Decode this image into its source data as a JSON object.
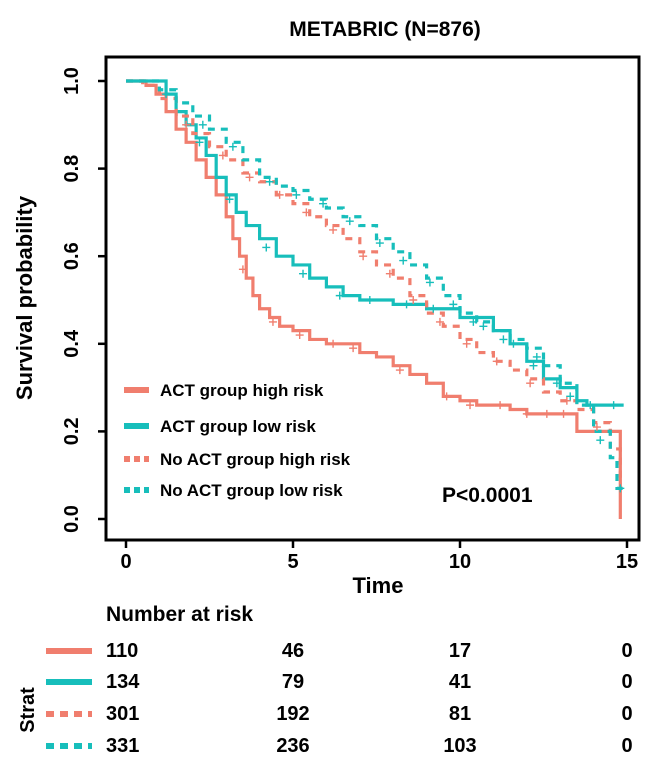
{
  "chart_data": {
    "type": "line",
    "subtype": "kaplan-meier",
    "title": "METABRIC (N=876)",
    "xlabel": "Time",
    "ylabel": "Survival probability",
    "xlim": [
      0,
      15
    ],
    "ylim": [
      0,
      1
    ],
    "x_ticks": [
      "0",
      "5",
      "10",
      "15"
    ],
    "y_ticks": [
      "0.0",
      "0.2",
      "0.4",
      "0.6",
      "0.8",
      "1.0"
    ],
    "grid": false,
    "legend_position": "bottom-left",
    "p_value": "P<0.0001",
    "colors": {
      "high": "#F07E6E",
      "low": "#17BEBB"
    },
    "series": [
      {
        "name": "ACT group high risk",
        "color": "#F07E6E",
        "dash": "solid",
        "points": [
          [
            0,
            1.0
          ],
          [
            0.6,
            0.99
          ],
          [
            0.9,
            0.97
          ],
          [
            1.2,
            0.93
          ],
          [
            1.5,
            0.89
          ],
          [
            1.8,
            0.86
          ],
          [
            2.1,
            0.82
          ],
          [
            2.4,
            0.78
          ],
          [
            2.7,
            0.74
          ],
          [
            3.0,
            0.69
          ],
          [
            3.2,
            0.64
          ],
          [
            3.4,
            0.6
          ],
          [
            3.6,
            0.55
          ],
          [
            3.8,
            0.51
          ],
          [
            4.0,
            0.48
          ],
          [
            4.3,
            0.46
          ],
          [
            4.6,
            0.44
          ],
          [
            5.0,
            0.43
          ],
          [
            5.5,
            0.41
          ],
          [
            6.0,
            0.4
          ],
          [
            6.5,
            0.4
          ],
          [
            7.0,
            0.38
          ],
          [
            7.5,
            0.37
          ],
          [
            8.0,
            0.35
          ],
          [
            8.5,
            0.33
          ],
          [
            9.0,
            0.31
          ],
          [
            9.5,
            0.28
          ],
          [
            10.0,
            0.27
          ],
          [
            10.5,
            0.26
          ],
          [
            11.0,
            0.26
          ],
          [
            11.5,
            0.25
          ],
          [
            12.0,
            0.24
          ],
          [
            13.5,
            0.24
          ],
          [
            13.5,
            0.2
          ],
          [
            14.8,
            0.2
          ],
          [
            14.8,
            0.0
          ]
        ],
        "censor": [
          [
            3.5,
            0.57
          ],
          [
            4.4,
            0.45
          ],
          [
            5.2,
            0.42
          ],
          [
            6.2,
            0.4
          ],
          [
            6.8,
            0.39
          ],
          [
            8.2,
            0.34
          ],
          [
            9.6,
            0.28
          ],
          [
            10.3,
            0.26
          ],
          [
            11.2,
            0.26
          ],
          [
            12.0,
            0.24
          ],
          [
            12.6,
            0.24
          ],
          [
            13.1,
            0.24
          ]
        ]
      },
      {
        "name": "ACT group low risk",
        "color": "#17BEBB",
        "dash": "solid",
        "points": [
          [
            0,
            1.0
          ],
          [
            0.9,
            1.0
          ],
          [
            1.2,
            0.97
          ],
          [
            1.5,
            0.93
          ],
          [
            1.8,
            0.9
          ],
          [
            2.1,
            0.87
          ],
          [
            2.4,
            0.83
          ],
          [
            2.7,
            0.78
          ],
          [
            3.0,
            0.74
          ],
          [
            3.3,
            0.7
          ],
          [
            3.6,
            0.67
          ],
          [
            4.0,
            0.64
          ],
          [
            4.5,
            0.6
          ],
          [
            5.0,
            0.58
          ],
          [
            5.5,
            0.55
          ],
          [
            6.0,
            0.53
          ],
          [
            6.5,
            0.51
          ],
          [
            7.0,
            0.5
          ],
          [
            8.0,
            0.49
          ],
          [
            9.0,
            0.48
          ],
          [
            10.0,
            0.46
          ],
          [
            11.0,
            0.43
          ],
          [
            11.5,
            0.4
          ],
          [
            12.0,
            0.36
          ],
          [
            12.5,
            0.32
          ],
          [
            13.0,
            0.3
          ],
          [
            13.5,
            0.27
          ],
          [
            13.8,
            0.26
          ],
          [
            14.9,
            0.26
          ]
        ],
        "censor": [
          [
            2.2,
            0.86
          ],
          [
            3.1,
            0.73
          ],
          [
            4.2,
            0.62
          ],
          [
            5.3,
            0.56
          ],
          [
            6.4,
            0.51
          ],
          [
            7.3,
            0.5
          ],
          [
            8.4,
            0.49
          ],
          [
            9.2,
            0.48
          ],
          [
            10.4,
            0.45
          ],
          [
            11.3,
            0.41
          ],
          [
            12.2,
            0.35
          ],
          [
            12.9,
            0.31
          ],
          [
            13.9,
            0.26
          ],
          [
            14.6,
            0.26
          ]
        ]
      },
      {
        "name": "No ACT group high risk",
        "color": "#F07E6E",
        "dash": "dashed",
        "points": [
          [
            0,
            1.0
          ],
          [
            0.5,
            0.99
          ],
          [
            1.0,
            0.96
          ],
          [
            1.5,
            0.92
          ],
          [
            2.0,
            0.88
          ],
          [
            2.5,
            0.85
          ],
          [
            3.0,
            0.82
          ],
          [
            3.5,
            0.79
          ],
          [
            4.0,
            0.77
          ],
          [
            4.5,
            0.74
          ],
          [
            5.0,
            0.72
          ],
          [
            5.5,
            0.69
          ],
          [
            6.0,
            0.67
          ],
          [
            6.5,
            0.64
          ],
          [
            7.0,
            0.61
          ],
          [
            7.5,
            0.58
          ],
          [
            8.0,
            0.55
          ],
          [
            8.5,
            0.51
          ],
          [
            9.0,
            0.47
          ],
          [
            9.5,
            0.44
          ],
          [
            10.0,
            0.41
          ],
          [
            10.5,
            0.38
          ],
          [
            11.0,
            0.36
          ],
          [
            11.5,
            0.34
          ],
          [
            12.0,
            0.32
          ],
          [
            12.5,
            0.29
          ],
          [
            13.0,
            0.27
          ],
          [
            13.5,
            0.25
          ],
          [
            14.0,
            0.22
          ],
          [
            14.5,
            0.16
          ],
          [
            14.8,
            0.08
          ]
        ],
        "censor": [
          [
            1.8,
            0.9
          ],
          [
            2.9,
            0.83
          ],
          [
            3.7,
            0.78
          ],
          [
            4.6,
            0.74
          ],
          [
            5.4,
            0.7
          ],
          [
            6.2,
            0.66
          ],
          [
            7.1,
            0.6
          ],
          [
            7.9,
            0.56
          ],
          [
            8.6,
            0.5
          ],
          [
            9.4,
            0.45
          ],
          [
            10.2,
            0.4
          ],
          [
            11.1,
            0.36
          ],
          [
            12.1,
            0.31
          ],
          [
            13.2,
            0.27
          ],
          [
            14.1,
            0.21
          ]
        ]
      },
      {
        "name": "No ACT group low risk",
        "color": "#17BEBB",
        "dash": "dashed",
        "points": [
          [
            0,
            1.0
          ],
          [
            0.6,
            1.0
          ],
          [
            1.0,
            0.98
          ],
          [
            1.5,
            0.95
          ],
          [
            2.0,
            0.92
          ],
          [
            2.5,
            0.89
          ],
          [
            3.0,
            0.86
          ],
          [
            3.5,
            0.82
          ],
          [
            4.0,
            0.78
          ],
          [
            4.5,
            0.76
          ],
          [
            5.0,
            0.75
          ],
          [
            5.5,
            0.73
          ],
          [
            6.0,
            0.71
          ],
          [
            6.5,
            0.69
          ],
          [
            7.0,
            0.67
          ],
          [
            7.5,
            0.64
          ],
          [
            8.0,
            0.61
          ],
          [
            8.5,
            0.58
          ],
          [
            9.0,
            0.55
          ],
          [
            9.5,
            0.51
          ],
          [
            10.0,
            0.47
          ],
          [
            10.5,
            0.45
          ],
          [
            11.0,
            0.43
          ],
          [
            11.5,
            0.41
          ],
          [
            12.0,
            0.39
          ],
          [
            12.5,
            0.35
          ],
          [
            13.0,
            0.31
          ],
          [
            13.5,
            0.26
          ],
          [
            14.0,
            0.2
          ],
          [
            14.5,
            0.14
          ],
          [
            14.7,
            0.07
          ],
          [
            14.9,
            0.07
          ]
        ],
        "censor": [
          [
            1.2,
            0.97
          ],
          [
            2.3,
            0.9
          ],
          [
            3.2,
            0.85
          ],
          [
            4.3,
            0.77
          ],
          [
            5.1,
            0.74
          ],
          [
            5.9,
            0.72
          ],
          [
            6.7,
            0.68
          ],
          [
            7.6,
            0.63
          ],
          [
            8.3,
            0.59
          ],
          [
            9.1,
            0.54
          ],
          [
            9.8,
            0.49
          ],
          [
            10.7,
            0.44
          ],
          [
            11.6,
            0.4
          ],
          [
            12.3,
            0.37
          ],
          [
            13.3,
            0.28
          ],
          [
            14.2,
            0.18
          ],
          [
            14.8,
            0.07
          ]
        ]
      }
    ],
    "risk_table": {
      "title": "Number at risk",
      "ylabel": "Strat",
      "rows": [
        {
          "color": "#F07E6E",
          "dash": "solid",
          "values": [
            "110",
            "46",
            "17",
            "0"
          ]
        },
        {
          "color": "#17BEBB",
          "dash": "solid",
          "values": [
            "134",
            "79",
            "41",
            "0"
          ]
        },
        {
          "color": "#F07E6E",
          "dash": "dashed",
          "values": [
            "301",
            "192",
            "81",
            "0"
          ]
        },
        {
          "color": "#17BEBB",
          "dash": "dashed",
          "values": [
            "331",
            "236",
            "103",
            "0"
          ]
        }
      ]
    }
  }
}
